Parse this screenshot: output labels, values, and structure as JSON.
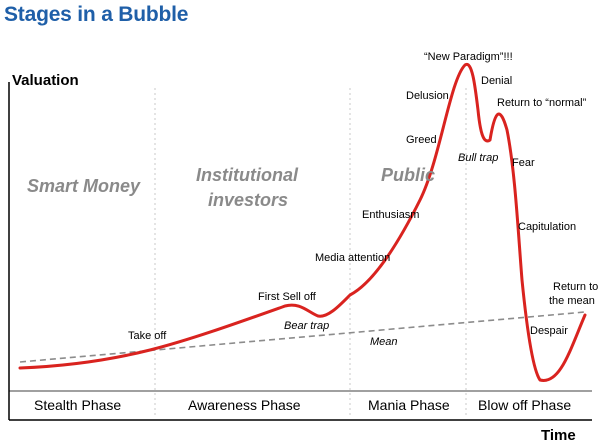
{
  "title": "Stages in a Bubble",
  "axes": {
    "y_label": "Valuation",
    "x_label": "Time"
  },
  "groups": {
    "smart_money": "Smart Money",
    "institutional_line1": "Institutional",
    "institutional_line2": "investors",
    "public": "Public"
  },
  "phases": {
    "stealth": "Stealth Phase",
    "awareness": "Awareness Phase",
    "mania": "Mania Phase",
    "blowoff": "Blow off Phase"
  },
  "annotations": {
    "take_off": "Take off",
    "first_sell_off": "First Sell off",
    "bear_trap": "Bear trap",
    "mean": "Mean",
    "media_attention": "Media attention",
    "enthusiasm": "Enthusiasm",
    "greed": "Greed",
    "delusion": "Delusion",
    "new_paradigm": "“New Paradigm”!!!",
    "denial": "Denial",
    "return_to_normal": "Return to “normal”",
    "bull_trap": "Bull trap",
    "fear": "Fear",
    "capitulation": "Capitulation",
    "return_to_the_mean_line1": "Return to",
    "return_to_the_mean_line2": "the mean",
    "despair": "Despair"
  },
  "colors": {
    "title": "#1f5fa8",
    "curve": "#d9231f",
    "mean_line": "#8c8c8c",
    "group_text": "#8a8a8a"
  }
}
